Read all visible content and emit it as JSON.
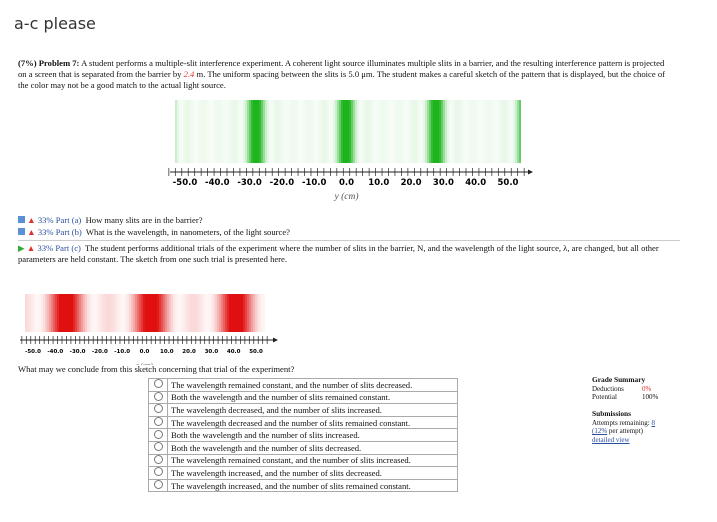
{
  "header": {
    "title": "a-c please"
  },
  "problem": {
    "label": "(7%) Problem 7:",
    "text_before": "A student performs a multiple-slit interference experiment. A coherent light source illuminates multiple slits in a barrier, and the resulting interference pattern is projected on a screen that is separated from the barrier by ",
    "distance": "2.4",
    "text_after": " m. The uniform spacing between the slits is 5.0 μm. The student makes a careful sketch of the pattern that is displayed, but the choice of the color may not be a good match to the actual light source."
  },
  "figure1": {
    "ticks": [
      "-50.0",
      "-40.0",
      "-30.0",
      "-20.0",
      "-10.0",
      "0.0",
      "10.0",
      "20.0",
      "30.0",
      "40.0",
      "50.0"
    ],
    "axis_label": "y (cm)"
  },
  "parts": [
    {
      "percent": "33%",
      "label": "Part (a)",
      "text": "How many slits are in the barrier?"
    },
    {
      "percent": "33%",
      "label": "Part (b)",
      "text": "What is the wavelength, in nanometers, of the light source?"
    },
    {
      "percent": "33%",
      "label": "Part (c)",
      "text": "The student performs additional trials of the experiment where the number of slits in the barrier, N, and the wavelength of the light source, λ, are changed, but all other parameters are held constant. The sketch from one such trial is presented here."
    }
  ],
  "figure2": {
    "ticks": [
      "-50.0",
      "-40.0",
      "-30.0",
      "-20.0",
      "-10.0",
      "0.0",
      "10.0",
      "20.0",
      "30.0",
      "40.0",
      "50.0"
    ],
    "axis_label": "y (cm)"
  },
  "question": "What may we conclude from this sketch concerning that trial of the experiment?",
  "options": [
    "The wavelength remained constant, and the number of slits decreased.",
    "Both the wavelength and the number of slits remained constant.",
    "The wavelength decreased, and the number of slits increased.",
    "The wavelength decreased and the number of slits remained constant.",
    "Both the wavelength and the number of slits increased.",
    "Both the wavelength and the number of slits decreased.",
    "The wavelength remained constant, and the number of slits increased.",
    "The wavelength increased, and the number of slits decreased.",
    "The wavelength increased, and the number of slits remained constant."
  ],
  "grade_summary": {
    "title": "Grade Summary",
    "rows": [
      [
        "Deductions",
        "0%"
      ],
      [
        "Potential",
        "100%"
      ]
    ]
  },
  "submissions": {
    "title": "Submissions",
    "attempts_label": "Attempts remaining: ",
    "attempts": "8",
    "per_attempt_pct": "(12%",
    "per_attempt_rest": " per attempt)",
    "detail": "detailed view"
  }
}
